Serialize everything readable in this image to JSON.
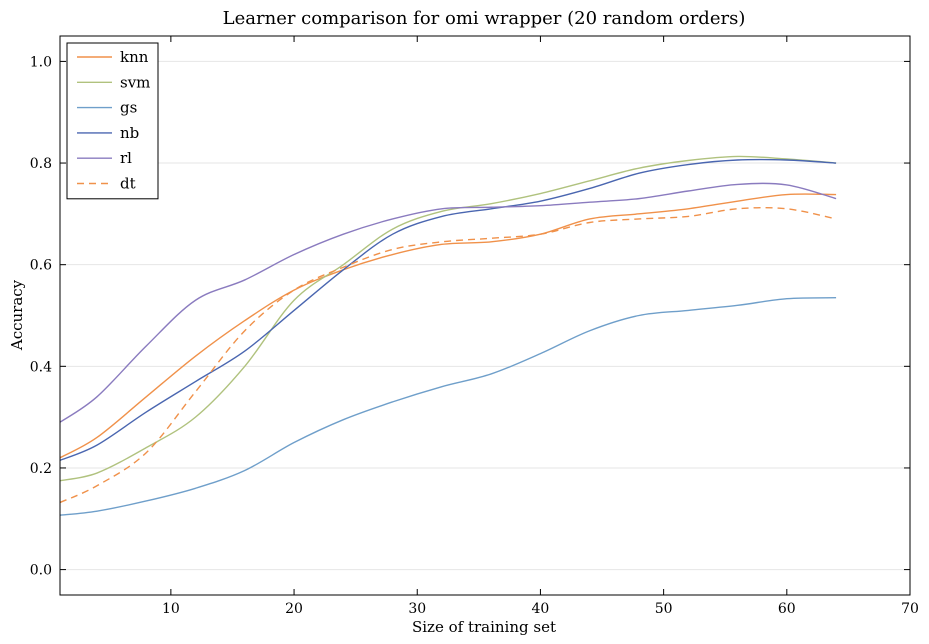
{
  "chart_data": {
    "type": "line",
    "title": "Learner comparison for omi wrapper (20 random orders)",
    "xlabel": "Size of training set",
    "ylabel": "Accuracy",
    "xlim": [
      1,
      70
    ],
    "ylim": [
      -0.05,
      1.05
    ],
    "xticks": [
      10,
      20,
      30,
      40,
      50,
      60,
      70
    ],
    "yticks": [
      0.0,
      0.2,
      0.4,
      0.6,
      0.8,
      1.0
    ],
    "xtick_labels": [
      "10",
      "20",
      "30",
      "40",
      "50",
      "60",
      "70"
    ],
    "ytick_labels": [
      "0.0",
      "0.2",
      "0.4",
      "0.6",
      "0.8",
      "1.0"
    ],
    "grid": "horizontal",
    "legend": "top-left",
    "x": [
      1,
      4,
      8,
      12,
      16,
      20,
      24,
      28,
      32,
      36,
      40,
      44,
      48,
      52,
      56,
      60,
      64
    ],
    "series": [
      {
        "name": "knn",
        "color": "#f0914a",
        "dash": "solid",
        "values": [
          0.22,
          0.26,
          0.34,
          0.42,
          0.49,
          0.55,
          0.59,
          0.62,
          0.64,
          0.645,
          0.66,
          0.69,
          0.7,
          0.71,
          0.725,
          0.738,
          0.738
        ]
      },
      {
        "name": "svm",
        "color": "#b0c27e",
        "dash": "solid",
        "values": [
          0.175,
          0.19,
          0.24,
          0.3,
          0.4,
          0.53,
          0.6,
          0.67,
          0.705,
          0.72,
          0.74,
          0.765,
          0.79,
          0.805,
          0.813,
          0.808,
          0.8
        ]
      },
      {
        "name": "gs",
        "color": "#6f9fca",
        "dash": "solid",
        "values": [
          0.107,
          0.115,
          0.135,
          0.16,
          0.195,
          0.25,
          0.295,
          0.33,
          0.36,
          0.385,
          0.425,
          0.47,
          0.5,
          0.51,
          0.52,
          0.533,
          0.535
        ]
      },
      {
        "name": "nb",
        "color": "#4a66b0",
        "dash": "solid",
        "values": [
          0.215,
          0.245,
          0.31,
          0.37,
          0.43,
          0.51,
          0.59,
          0.66,
          0.695,
          0.71,
          0.725,
          0.75,
          0.78,
          0.797,
          0.806,
          0.806,
          0.8
        ]
      },
      {
        "name": "rl",
        "color": "#8a7bbf",
        "dash": "solid",
        "values": [
          0.29,
          0.34,
          0.44,
          0.53,
          0.57,
          0.62,
          0.66,
          0.69,
          0.71,
          0.713,
          0.716,
          0.723,
          0.73,
          0.745,
          0.758,
          0.757,
          0.73
        ]
      },
      {
        "name": "dt",
        "color": "#f0914a",
        "dash": "dashed",
        "values": [
          0.132,
          0.165,
          0.23,
          0.35,
          0.47,
          0.55,
          0.595,
          0.63,
          0.645,
          0.652,
          0.66,
          0.683,
          0.69,
          0.695,
          0.71,
          0.71,
          0.69
        ]
      }
    ]
  }
}
